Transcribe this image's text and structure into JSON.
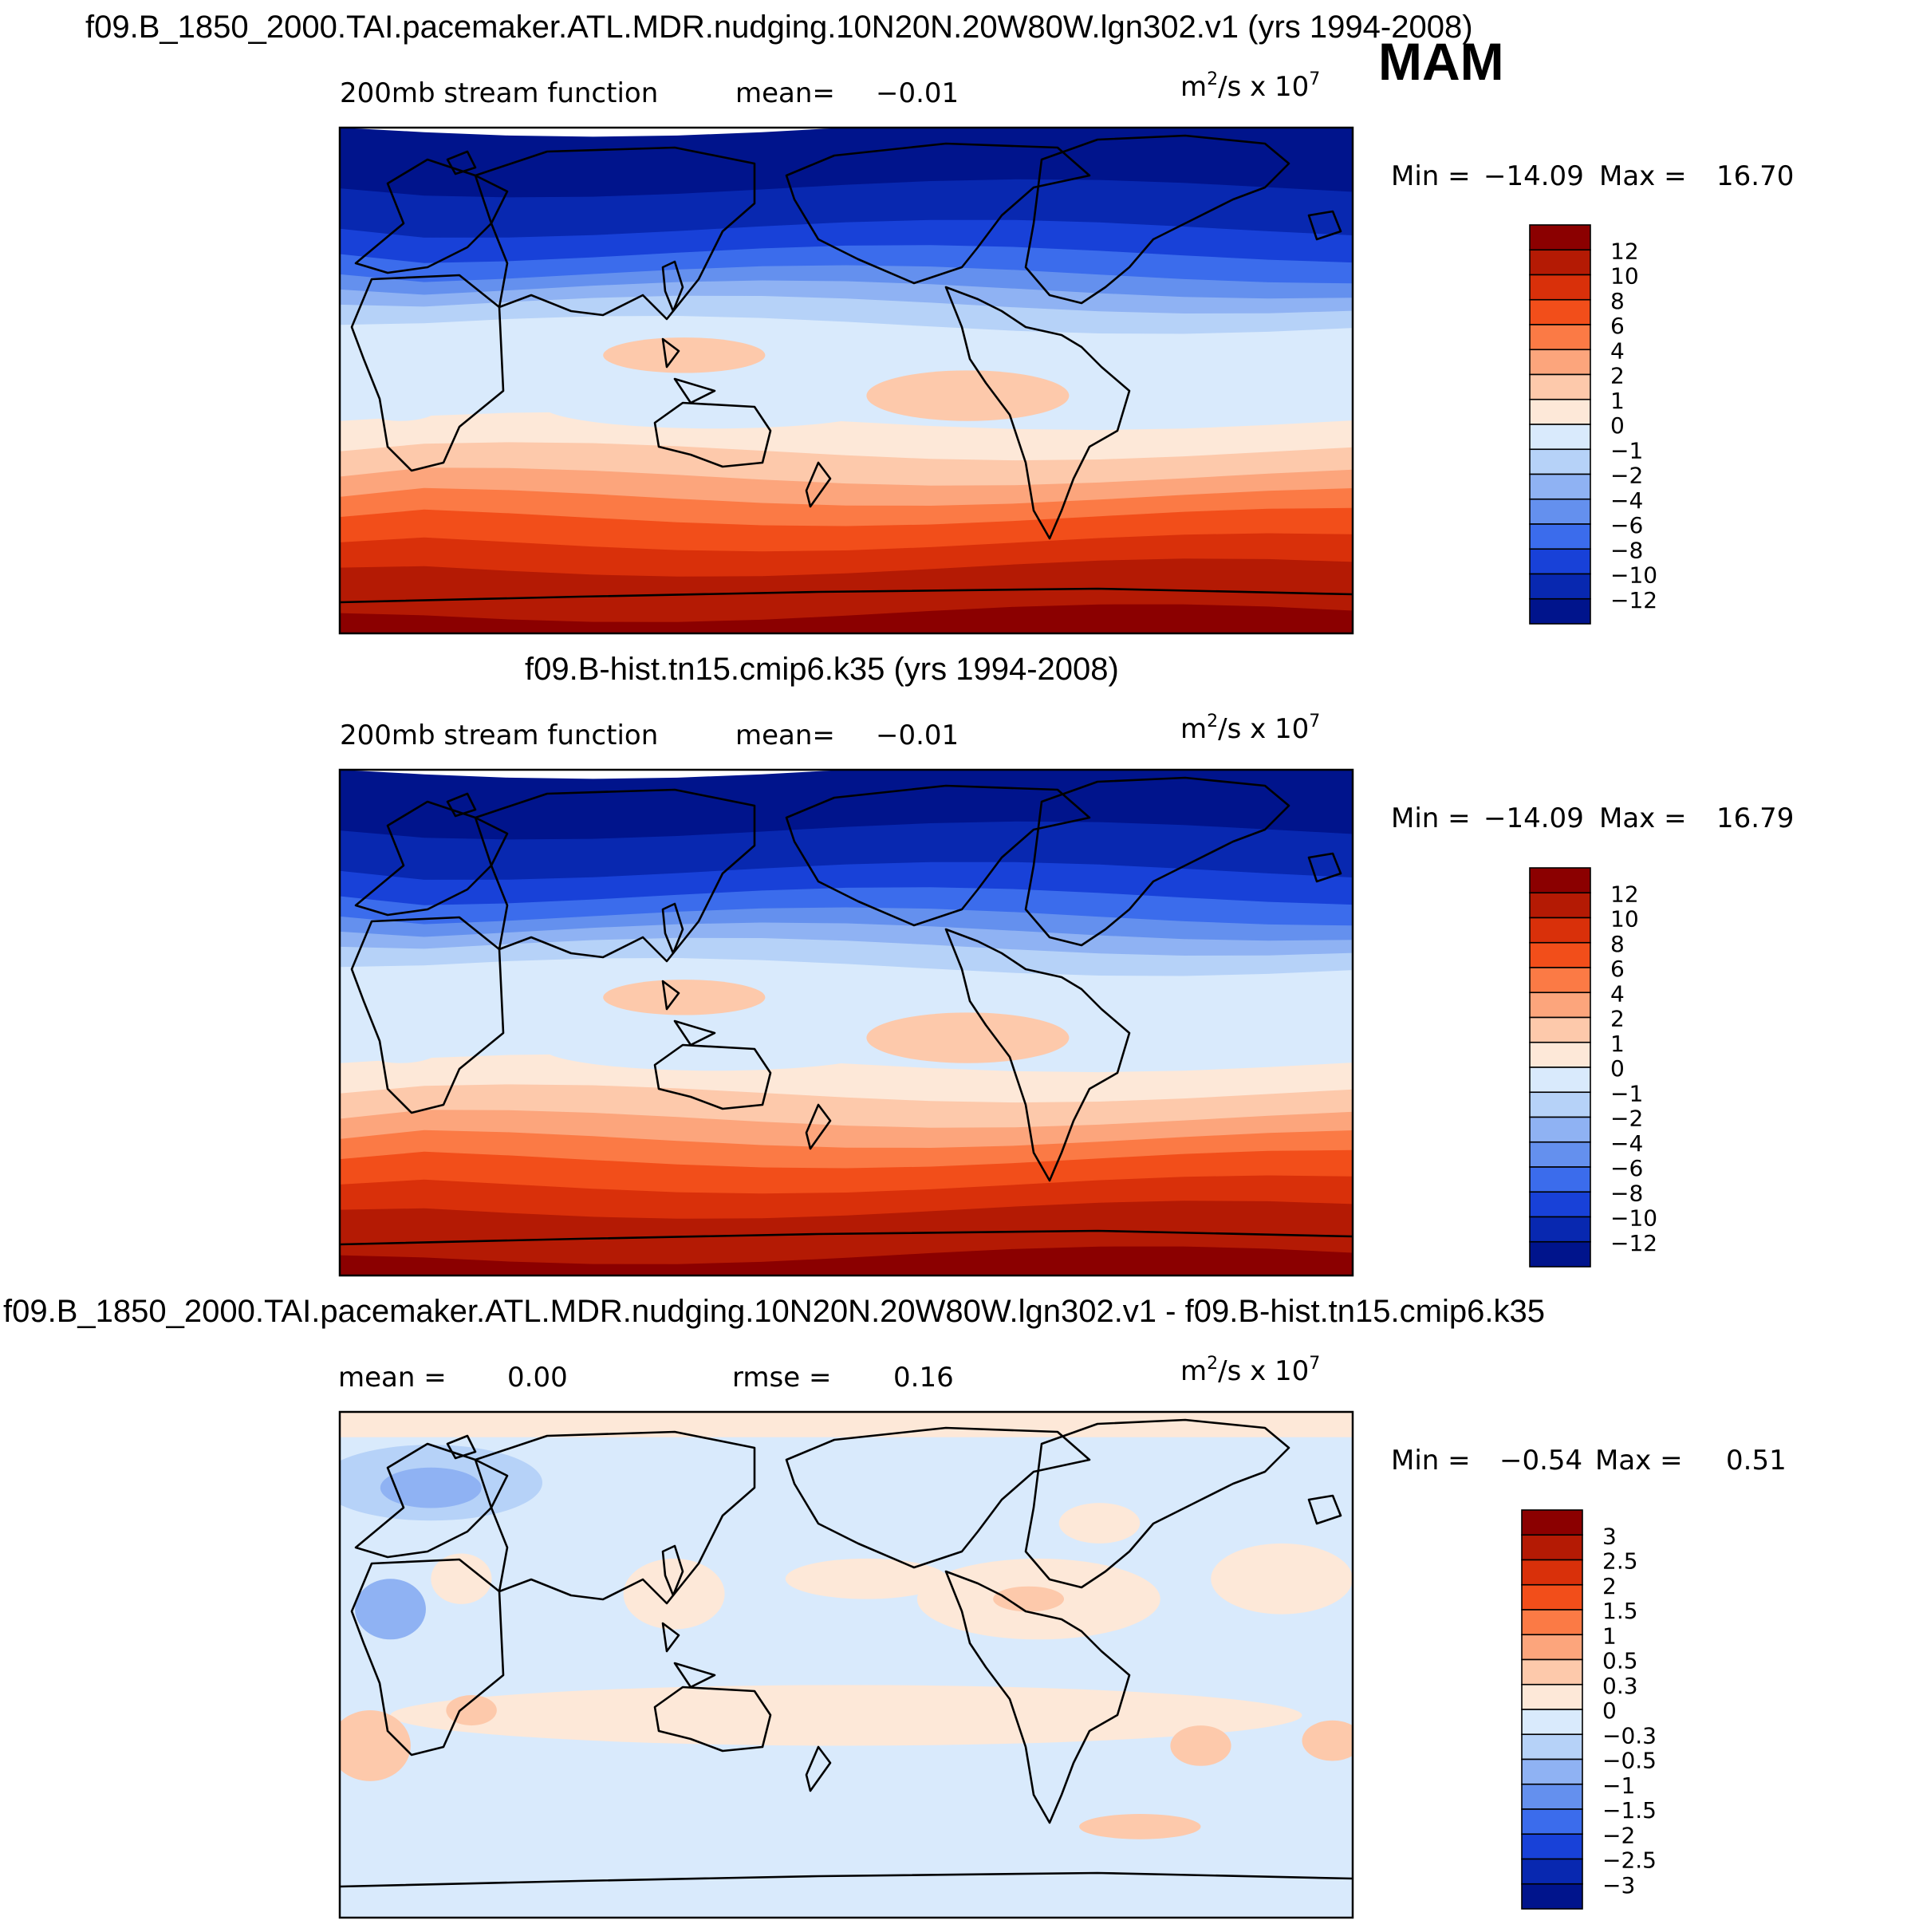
{
  "page": {
    "season": "MAM"
  },
  "chart_data": [
    {
      "type": "heatmap",
      "title": "f09.B_1850_2000.TAI.pacemaker.ATL.MDR.nudging.10N20N.20W80W.lgn302.v1 (yrs 1994-2008)",
      "field": "200mb stream function",
      "mean_label": "mean=",
      "mean": "−0.01",
      "units_base": "m",
      "units_sup1": "2",
      "units_mid": "/s x 10",
      "units_sup2": "7",
      "min_label": "Min =",
      "min": "−14.09",
      "max_label": "Max =",
      "max": "16.70",
      "levels": [
        "12",
        "10",
        "8",
        "6",
        "4",
        "2",
        "1",
        "0",
        "−1",
        "−2",
        "−4",
        "−6",
        "−8",
        "−10",
        "−12"
      ],
      "colors": [
        "#8b0000",
        "#b41a04",
        "#d9300a",
        "#f24e1a",
        "#fb7a45",
        "#fca57c",
        "#fdc9ab",
        "#fde8d8",
        "#d9eafc",
        "#b6d2f8",
        "#8fb2f3",
        "#6490ee",
        "#3b6cec",
        "#1841d8",
        "#0828b0",
        "#00148c"
      ]
    },
    {
      "type": "heatmap",
      "title": "f09.B-hist.tn15.cmip6.k35 (yrs 1994-2008)",
      "field": "200mb stream function",
      "mean_label": "mean=",
      "mean": "−0.01",
      "units_base": "m",
      "units_sup1": "2",
      "units_mid": "/s x 10",
      "units_sup2": "7",
      "min_label": "Min =",
      "min": "−14.09",
      "max_label": "Max =",
      "max": "16.79",
      "levels": [
        "12",
        "10",
        "8",
        "6",
        "4",
        "2",
        "1",
        "0",
        "−1",
        "−2",
        "−4",
        "−6",
        "−8",
        "−10",
        "−12"
      ],
      "colors": [
        "#8b0000",
        "#b41a04",
        "#d9300a",
        "#f24e1a",
        "#fb7a45",
        "#fca57c",
        "#fdc9ab",
        "#fde8d8",
        "#d9eafc",
        "#b6d2f8",
        "#8fb2f3",
        "#6490ee",
        "#3b6cec",
        "#1841d8",
        "#0828b0",
        "#00148c"
      ]
    },
    {
      "type": "heatmap",
      "title": "f09.B_1850_2000.TAI.pacemaker.ATL.MDR.nudging.10N20N.20W80W.lgn302.v1 - f09.B-hist.tn15.cmip6.k35",
      "mean_label": "mean =",
      "mean": "0.00",
      "rmse_label": "rmse =",
      "rmse": "0.16",
      "units_base": "m",
      "units_sup1": "2",
      "units_mid": "/s x 10",
      "units_sup2": "7",
      "min_label": "Min =",
      "min": "−0.54",
      "max_label": "Max =",
      "max": "0.51",
      "levels": [
        "3",
        "2.5",
        "2",
        "1.5",
        "1",
        "0.5",
        "0.3",
        "0",
        "−0.3",
        "−0.5",
        "−1",
        "−1.5",
        "−2",
        "−2.5",
        "−3"
      ],
      "colors": [
        "#8b0000",
        "#b41a04",
        "#d9300a",
        "#f24e1a",
        "#fb7a45",
        "#fca57c",
        "#fdc9ab",
        "#fde8d8",
        "#d9eafc",
        "#b6d2f8",
        "#8fb2f3",
        "#6490ee",
        "#3b6cec",
        "#1841d8",
        "#0828b0",
        "#00148c"
      ]
    }
  ]
}
